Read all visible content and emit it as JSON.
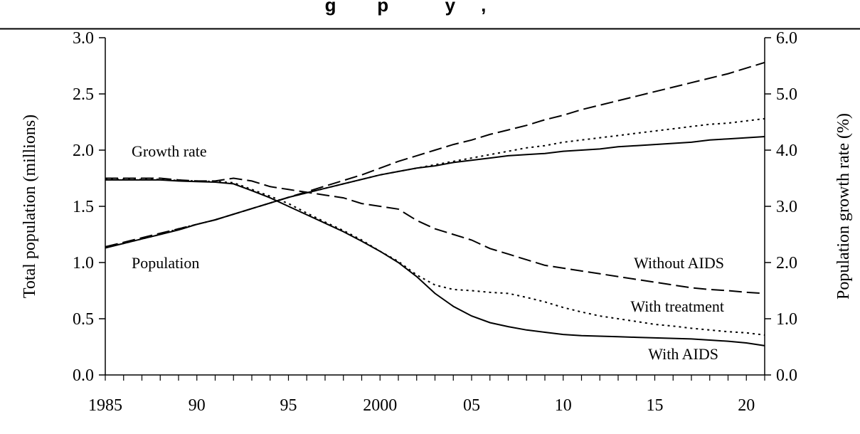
{
  "header": {
    "visible_title_fragment": "g        p           y     ,"
  },
  "chart_data": {
    "type": "line",
    "xlabel": "",
    "ylabel_left": "Total population (millions)",
    "ylabel_right": "Population growth rate (%)",
    "xlim": [
      1985,
      2021
    ],
    "ylim_left": [
      0,
      3.0
    ],
    "ylim_right": [
      0,
      6.0
    ],
    "x_tick_values": [
      1985,
      1990,
      1995,
      2000,
      2005,
      2010,
      2015,
      2020
    ],
    "x_tick_labels": [
      "1985",
      "90",
      "95",
      "2000",
      "05",
      "10",
      "15",
      "20"
    ],
    "y_left_tick_labels": [
      "0.0",
      "0.5",
      "1.0",
      "1.5",
      "2.0",
      "2.5",
      "3.0"
    ],
    "y_right_tick_labels": [
      "0.0",
      "1.0",
      "2.0",
      "3.0",
      "4.0",
      "5.0",
      "6.0"
    ],
    "grid": false,
    "annotations": [
      {
        "text": "Growth rate"
      },
      {
        "text": "Population"
      },
      {
        "text": "Without AIDS"
      },
      {
        "text": "With treatment"
      },
      {
        "text": "With AIDS"
      }
    ],
    "x": [
      1985,
      1986,
      1987,
      1988,
      1989,
      1990,
      1991,
      1992,
      1993,
      1994,
      1995,
      1996,
      1997,
      1998,
      1999,
      2000,
      2001,
      2002,
      2003,
      2004,
      2005,
      2006,
      2007,
      2008,
      2009,
      2010,
      2011,
      2012,
      2013,
      2014,
      2015,
      2016,
      2017,
      2018,
      2019,
      2020,
      2021
    ],
    "series": [
      {
        "group": "population",
        "axis": "left",
        "scenario": "Without AIDS",
        "dash": "long",
        "values": [
          1.14,
          1.18,
          1.22,
          1.26,
          1.3,
          1.34,
          1.38,
          1.43,
          1.48,
          1.53,
          1.58,
          1.63,
          1.68,
          1.73,
          1.78,
          1.84,
          1.9,
          1.95,
          2.0,
          2.05,
          2.09,
          2.14,
          2.18,
          2.22,
          2.27,
          2.31,
          2.36,
          2.4,
          2.44,
          2.48,
          2.52,
          2.56,
          2.6,
          2.64,
          2.68,
          2.73,
          2.78
        ]
      },
      {
        "group": "population",
        "axis": "left",
        "scenario": "With treatment",
        "dash": "dot",
        "values": [
          1.14,
          1.17,
          1.21,
          1.25,
          1.3,
          1.34,
          1.38,
          1.43,
          1.48,
          1.53,
          1.58,
          1.62,
          1.66,
          1.7,
          1.74,
          1.78,
          1.81,
          1.84,
          1.87,
          1.9,
          1.93,
          1.96,
          1.99,
          2.02,
          2.04,
          2.07,
          2.09,
          2.11,
          2.13,
          2.15,
          2.17,
          2.19,
          2.21,
          2.23,
          2.24,
          2.26,
          2.28
        ]
      },
      {
        "group": "population",
        "axis": "left",
        "scenario": "With AIDS",
        "dash": "solid",
        "values": [
          1.13,
          1.17,
          1.21,
          1.25,
          1.29,
          1.34,
          1.38,
          1.43,
          1.48,
          1.53,
          1.58,
          1.62,
          1.66,
          1.7,
          1.74,
          1.78,
          1.81,
          1.84,
          1.86,
          1.89,
          1.91,
          1.93,
          1.95,
          1.96,
          1.97,
          1.99,
          2.0,
          2.01,
          2.03,
          2.04,
          2.05,
          2.06,
          2.07,
          2.09,
          2.1,
          2.11,
          2.12
        ]
      },
      {
        "group": "growth rate",
        "axis": "right",
        "scenario": "Without AIDS",
        "dash": "long",
        "values": [
          3.5,
          3.5,
          3.5,
          3.5,
          3.47,
          3.45,
          3.45,
          3.5,
          3.45,
          3.35,
          3.3,
          3.25,
          3.2,
          3.15,
          3.05,
          3.0,
          2.95,
          2.75,
          2.6,
          2.5,
          2.4,
          2.25,
          2.15,
          2.05,
          1.95,
          1.9,
          1.85,
          1.8,
          1.75,
          1.7,
          1.65,
          1.6,
          1.55,
          1.52,
          1.5,
          1.47,
          1.45
        ]
      },
      {
        "group": "growth rate",
        "axis": "right",
        "scenario": "With treatment",
        "dash": "dot",
        "values": [
          3.48,
          3.48,
          3.48,
          3.48,
          3.46,
          3.45,
          3.44,
          3.42,
          3.3,
          3.18,
          3.05,
          2.88,
          2.72,
          2.57,
          2.4,
          2.2,
          2.02,
          1.78,
          1.6,
          1.52,
          1.5,
          1.47,
          1.45,
          1.38,
          1.3,
          1.2,
          1.12,
          1.05,
          1.0,
          0.95,
          0.9,
          0.87,
          0.83,
          0.8,
          0.77,
          0.75,
          0.71
        ]
      },
      {
        "group": "growth rate",
        "axis": "right",
        "scenario": "With AIDS",
        "dash": "solid",
        "values": [
          3.47,
          3.47,
          3.47,
          3.47,
          3.45,
          3.44,
          3.43,
          3.4,
          3.28,
          3.15,
          3.0,
          2.85,
          2.7,
          2.55,
          2.38,
          2.2,
          2.0,
          1.75,
          1.45,
          1.22,
          1.05,
          0.93,
          0.86,
          0.8,
          0.76,
          0.72,
          0.7,
          0.69,
          0.68,
          0.67,
          0.66,
          0.65,
          0.64,
          0.62,
          0.6,
          0.57,
          0.52
        ]
      }
    ],
    "series_colors": {
      "line": "#000000"
    }
  }
}
